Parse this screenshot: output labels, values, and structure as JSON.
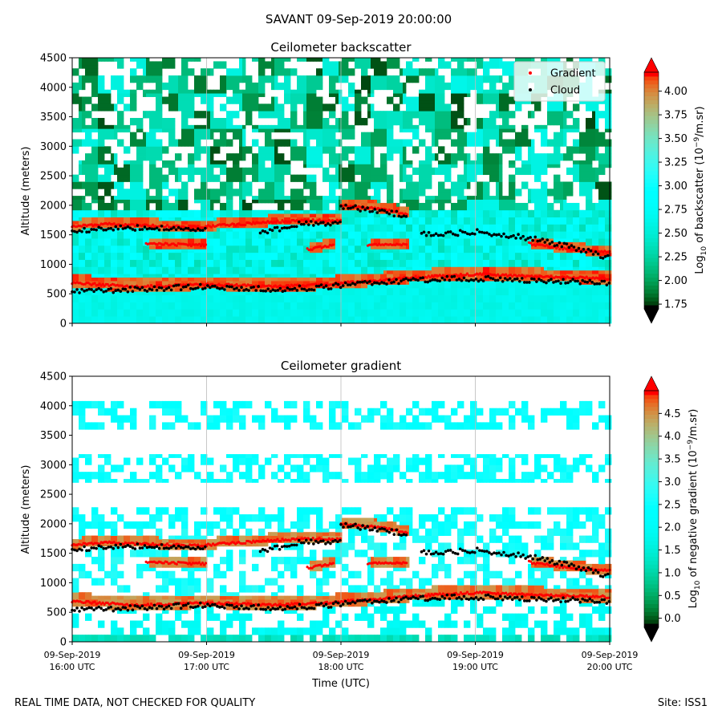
{
  "suptitle": "SAVANT 09-Sep-2019 20:00:00",
  "footer": {
    "left": "REAL TIME DATA, NOT CHECKED FOR QUALITY",
    "right": "Site: ISS1"
  },
  "chart_data": [
    {
      "type": "heatmap",
      "title": "Ceilometer backscatter",
      "ylabel": "Altitude (meters)",
      "ylim": [
        0,
        4500
      ],
      "yticks": [
        "0",
        "500",
        "1000",
        "1500",
        "2000",
        "2500",
        "3000",
        "3500",
        "4000",
        "4500"
      ],
      "xlim": [
        "09-Sep-2019 16:00 UTC",
        "09-Sep-2019 20:00 UTC"
      ],
      "colorbar": {
        "label_pre": "Log",
        "label_sub": "10",
        "label_mid": " of backscatter (10",
        "label_sup": "−9",
        "label_post": "/m.sr)",
        "range": [
          1.7,
          4.2
        ],
        "ticks": [
          "1.75",
          "2.00",
          "2.25",
          "2.50",
          "2.75",
          "3.00",
          "3.25",
          "3.50",
          "3.75",
          "4.00"
        ],
        "colormap": "rainbow",
        "extend": "both"
      },
      "legend": {
        "position": "upper right",
        "entries": [
          {
            "label": "Gradient",
            "color": "#ff0000"
          },
          {
            "label": "Cloud",
            "color": "#000000"
          }
        ]
      },
      "gradient_layers": [
        {
          "name": "low",
          "t": [
            0,
            0.25,
            0.5,
            0.75,
            1,
            1.25,
            1.5,
            1.75,
            2,
            2.25,
            2.5,
            2.75,
            3,
            3.25,
            3.5,
            3.75,
            4
          ],
          "alt": [
            690,
            650,
            620,
            640,
            660,
            640,
            620,
            640,
            680,
            720,
            770,
            800,
            830,
            810,
            790,
            770,
            760
          ]
        },
        {
          "name": "upper",
          "t": [
            0,
            0.25,
            0.5,
            0.75,
            1
          ],
          "alt": [
            1640,
            1680,
            1660,
            1640,
            1630
          ]
        },
        {
          "name": "upper",
          "t": [
            1.0,
            1.25,
            1.5,
            1.75,
            2.0
          ],
          "alt": [
            1640,
            1680,
            1720,
            1740,
            1740
          ]
        },
        {
          "name": "upper",
          "t": [
            2.0,
            2.25,
            2.5
          ],
          "alt": [
            2000,
            1950,
            1850
          ]
        },
        {
          "name": "mid",
          "t": [
            0.55,
            1.0
          ],
          "alt": [
            1350,
            1320
          ]
        },
        {
          "name": "mid",
          "t": [
            1.75,
            1.95
          ],
          "alt": [
            1250,
            1330
          ]
        },
        {
          "name": "mid",
          "t": [
            2.2,
            2.5
          ],
          "alt": [
            1330,
            1330
          ]
        },
        {
          "name": "upper",
          "t": [
            3.4,
            3.7,
            4.0
          ],
          "alt": [
            1350,
            1250,
            1200
          ]
        }
      ],
      "cloud_layers": [
        {
          "t": [
            0,
            0.25,
            0.5,
            0.75,
            1,
            1.25,
            1.5,
            1.75,
            2,
            2.25,
            2.5,
            2.75,
            3,
            3.25,
            3.5,
            3.75,
            4
          ],
          "alt": [
            560,
            560,
            580,
            600,
            620,
            600,
            580,
            600,
            640,
            680,
            720,
            760,
            760,
            740,
            720,
            700,
            680
          ]
        },
        {
          "t": [
            0,
            0.25,
            0.5,
            0.75,
            1
          ],
          "alt": [
            1560,
            1600,
            1620,
            1620,
            1600
          ]
        },
        {
          "t": [
            1.4,
            1.7,
            2.0
          ],
          "alt": [
            1530,
            1680,
            1720
          ]
        },
        {
          "t": [
            2.0,
            2.25,
            2.5
          ],
          "alt": [
            1980,
            1920,
            1820
          ]
        },
        {
          "t": [
            2.6,
            3.0,
            3.4,
            3.8,
            4.0
          ],
          "alt": [
            1500,
            1550,
            1450,
            1250,
            1100
          ]
        }
      ]
    },
    {
      "type": "heatmap",
      "title": "Ceilometer gradient",
      "xlabel": "Time (UTC)",
      "ylabel": "Altitude (meters)",
      "ylim": [
        0,
        4500
      ],
      "yticks": [
        "0",
        "500",
        "1000",
        "1500",
        "2000",
        "2500",
        "3000",
        "3500",
        "4000",
        "4500"
      ],
      "xticks": [
        {
          "l1": "09-Sep-2019",
          "l2": "16:00 UTC"
        },
        {
          "l1": "09-Sep-2019",
          "l2": "17:00 UTC"
        },
        {
          "l1": "09-Sep-2019",
          "l2": "18:00 UTC"
        },
        {
          "l1": "09-Sep-2019",
          "l2": "19:00 UTC"
        },
        {
          "l1": "09-Sep-2019",
          "l2": "20:00 UTC"
        }
      ],
      "colorbar": {
        "label_pre": "Log",
        "label_sub": "10",
        "label_mid": " of negative gradient (10",
        "label_sup": "−9",
        "label_post": "/m.sr)",
        "range": [
          -0.2,
          5.0
        ],
        "ticks": [
          "0.0",
          "0.5",
          "1.0",
          "1.5",
          "2.0",
          "2.5",
          "3.0",
          "3.5",
          "4.0",
          "4.5"
        ],
        "colormap": "rainbow",
        "extend": "both"
      }
    }
  ]
}
